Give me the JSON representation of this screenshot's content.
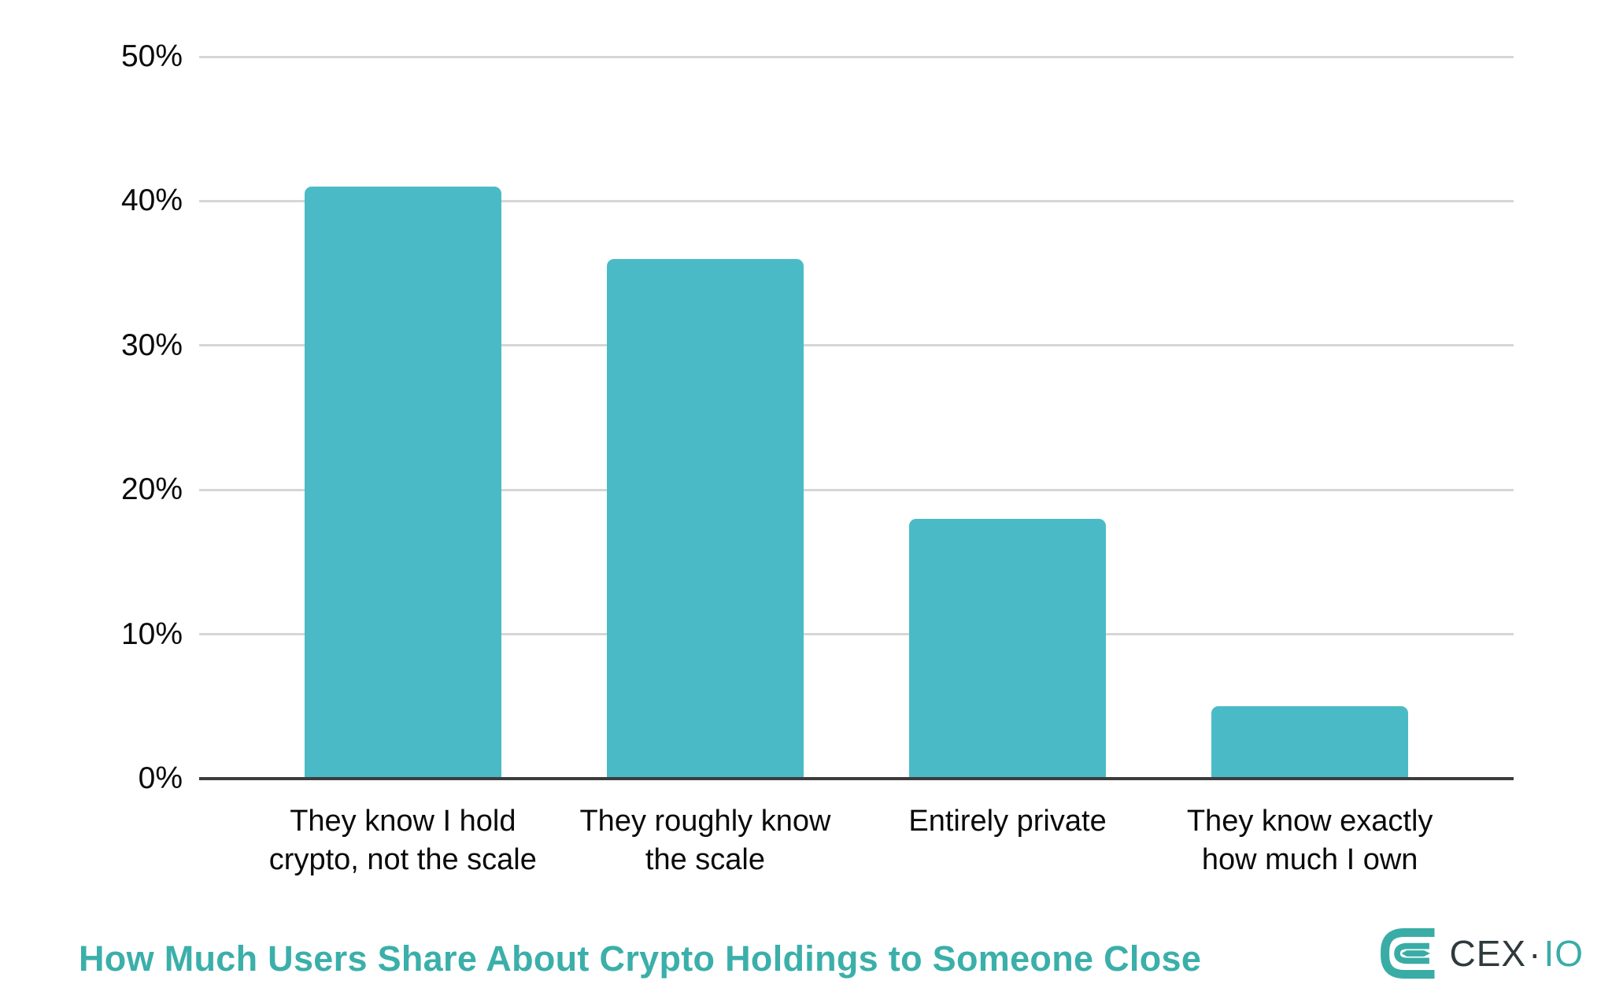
{
  "chart_data": {
    "type": "bar",
    "title": "How Much Users Share About Crypto Holdings to Someone Close",
    "categories": [
      "They know I hold crypto, not the scale",
      "They roughly know the scale",
      "Entirely private",
      "They know exactly how much I own"
    ],
    "category_lines": [
      [
        "They know I hold",
        "crypto, not the scale"
      ],
      [
        "They roughly know",
        "the scale"
      ],
      [
        "Entirely private"
      ],
      [
        "They know exactly",
        "how much I own"
      ]
    ],
    "values": [
      41,
      36,
      18,
      5
    ],
    "unit": "%",
    "xlabel": "",
    "ylabel": "",
    "ylim": [
      0,
      50
    ],
    "ytick_values": [
      0,
      10,
      20,
      30,
      40,
      50
    ],
    "ytick_labels": [
      "0%",
      "10%",
      "20%",
      "30%",
      "40%",
      "50%"
    ],
    "grid": "horizontal",
    "legend": "none",
    "bar_color": "#4ABBC6"
  },
  "footer": {
    "title": "How Much Users Share About Crypto Holdings to Someone Close"
  },
  "logo": {
    "text_primary": "CEX",
    "separator": "·",
    "text_secondary": "IO"
  },
  "colors": {
    "bar": "#4ABBC6",
    "title_teal": "#3BAFAA",
    "logo_teal": "#3AACA6",
    "logo_dark": "#2E3A3B",
    "gridline": "#D6D6D6",
    "axis_line": "#3C3C3C",
    "label_text": "#0A0A0A"
  }
}
